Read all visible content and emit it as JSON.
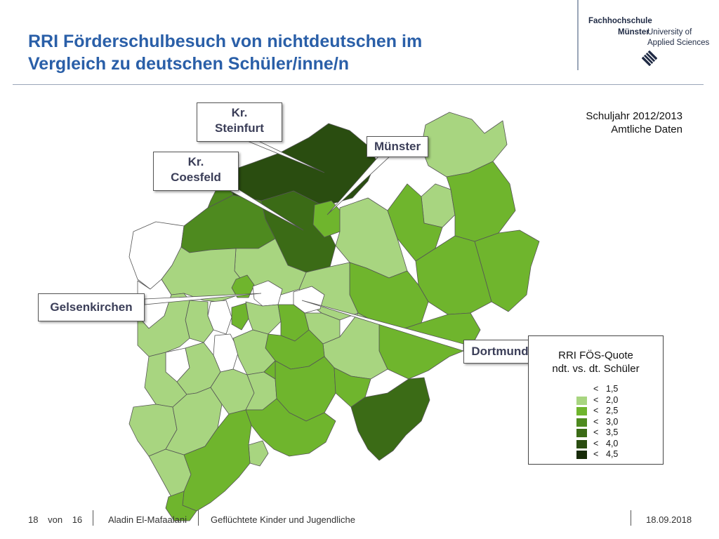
{
  "title": {
    "line1": "RRI Förderschulbesuch von nichtdeutschen im",
    "line2": "Vergleich zu deutschen Schüler/inne/n"
  },
  "logo": {
    "line1": "Fachhochschule",
    "line2a": "Münster",
    "line2b": "University of",
    "line3": "Applied Sciences"
  },
  "info": {
    "line1": "Schuljahr 2012/2013",
    "line2": "Amtliche Daten"
  },
  "callouts": {
    "steinfurt": "Kr.\nSteinfurt",
    "coesfeld": "Kr.\nCoesfeld",
    "muenster": "Münster",
    "gelsenkirchen": "Gelsenkirchen",
    "dortmund": "Dortmund"
  },
  "legend": {
    "title_line1": "RRI FÖS-Quote",
    "title_line2": "ndt. vs. dt. Schüler",
    "classes": [
      {
        "op": "<",
        "value": "1,5",
        "color": "#ffffff"
      },
      {
        "op": "<",
        "value": "2,0",
        "color": "#a8d580"
      },
      {
        "op": "<",
        "value": "2,5",
        "color": "#6fb52d"
      },
      {
        "op": "<",
        "value": "3,0",
        "color": "#4e8a1f"
      },
      {
        "op": "<",
        "value": "3,5",
        "color": "#3b6b16"
      },
      {
        "op": "<",
        "value": "4,0",
        "color": "#2a4d10"
      },
      {
        "op": "<",
        "value": "4,5",
        "color": "#172b08"
      }
    ]
  },
  "footer": {
    "page": "18",
    "of": "von",
    "total": "16",
    "author": "Aladin El-Mafaalani",
    "topic": "Geflüchtete Kinder und Jugendliche",
    "date": "18.09.2018"
  }
}
